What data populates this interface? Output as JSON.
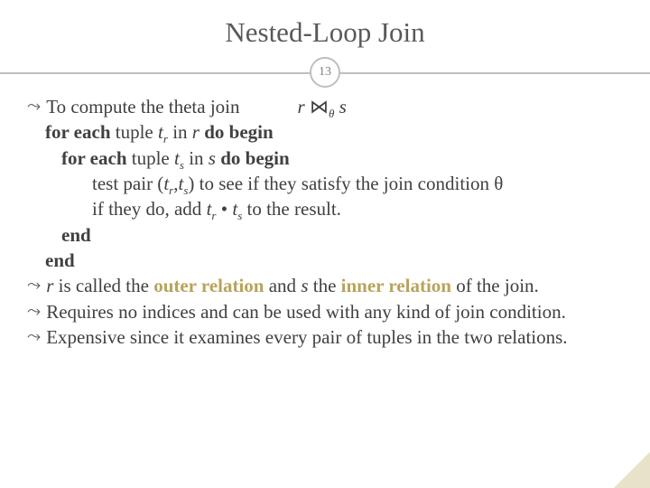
{
  "title": "Nested-Loop Join",
  "page_number": "13",
  "colors": {
    "title_color": "#595959",
    "rule_color": "#bfbfbf",
    "body_color": "#404040",
    "emphasis_color": "#b8a45a",
    "corner_color": "#e8e2c8",
    "background": "#ffffff"
  },
  "bullet1": {
    "lead": "To compute the theta join",
    "expr_r": "r",
    "join_symbol": "⋈",
    "theta": "θ",
    "expr_s": "s"
  },
  "algo": {
    "l1_a": "for each",
    "l1_b": " tuple ",
    "l1_t": "t",
    "l1_sub": "r",
    "l1_c": " in ",
    "l1_r": "r",
    "l1_d": " do begin",
    "l2_a": "for each",
    "l2_b": " tuple ",
    "l2_t": "t",
    "l2_sub": "s",
    "l2_c": " in ",
    "l2_s": "s",
    "l2_d": " do begin",
    "l3_a": "test pair (",
    "l3_t1": "t",
    "l3_s1": "r",
    "l3_comma": ",",
    "l3_t2": "t",
    "l3_s2": "s",
    "l3_b": ") to see if they satisfy the join condition θ",
    "l4_a": "if they do, add ",
    "l4_t1": "t",
    "l4_s1": "r",
    "l4_dot": " • ",
    "l4_t2": "t",
    "l4_s2": "s",
    "l4_b": " to the result.",
    "l5": "end",
    "l6": "end"
  },
  "bullet2": {
    "r": "r",
    "a": "  is called the ",
    "outer": "outer relation",
    "b": " and ",
    "s": "s",
    "c": " the ",
    "inner": "inner relation",
    "d": " of the join."
  },
  "bullet3": "Requires no indices and can be used with any kind of join condition.",
  "bullet4": "Expensive since it examines every pair of tuples in the two relations."
}
